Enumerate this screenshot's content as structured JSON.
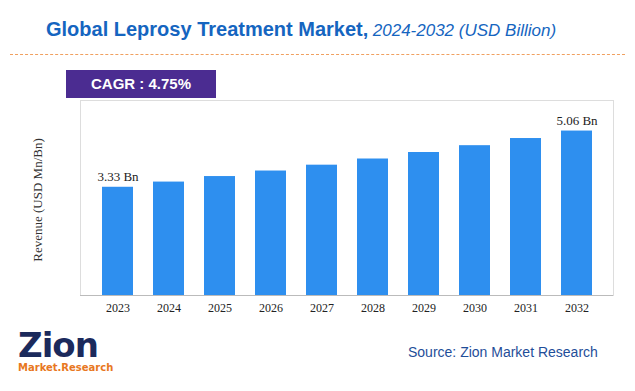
{
  "chart_data": {
    "type": "bar",
    "title": "Global Leprosy Treatment Market,",
    "subtitle": "2024-2032 (USD Billion)",
    "annotation": "CAGR : 4.75%",
    "y_label": "Revenue (USD Mn/Bn)",
    "source": "Source: Zion Market Research",
    "logo": {
      "name": "Zion",
      "tagline": "Market.Research"
    },
    "categories": [
      "2023",
      "2024",
      "2025",
      "2026",
      "2027",
      "2028",
      "2029",
      "2030",
      "2031",
      "2032"
    ],
    "values": [
      3.33,
      3.49,
      3.66,
      3.83,
      4.01,
      4.2,
      4.4,
      4.61,
      4.83,
      5.06
    ],
    "value_labels": [
      "3.33 Bn",
      null,
      null,
      null,
      null,
      null,
      null,
      null,
      null,
      "5.06 Bn"
    ],
    "data_labels": true,
    "color": "#2e8fef",
    "ylim": [
      0,
      6
    ],
    "yticks": [],
    "tick_labels": "x",
    "grid": false
  }
}
